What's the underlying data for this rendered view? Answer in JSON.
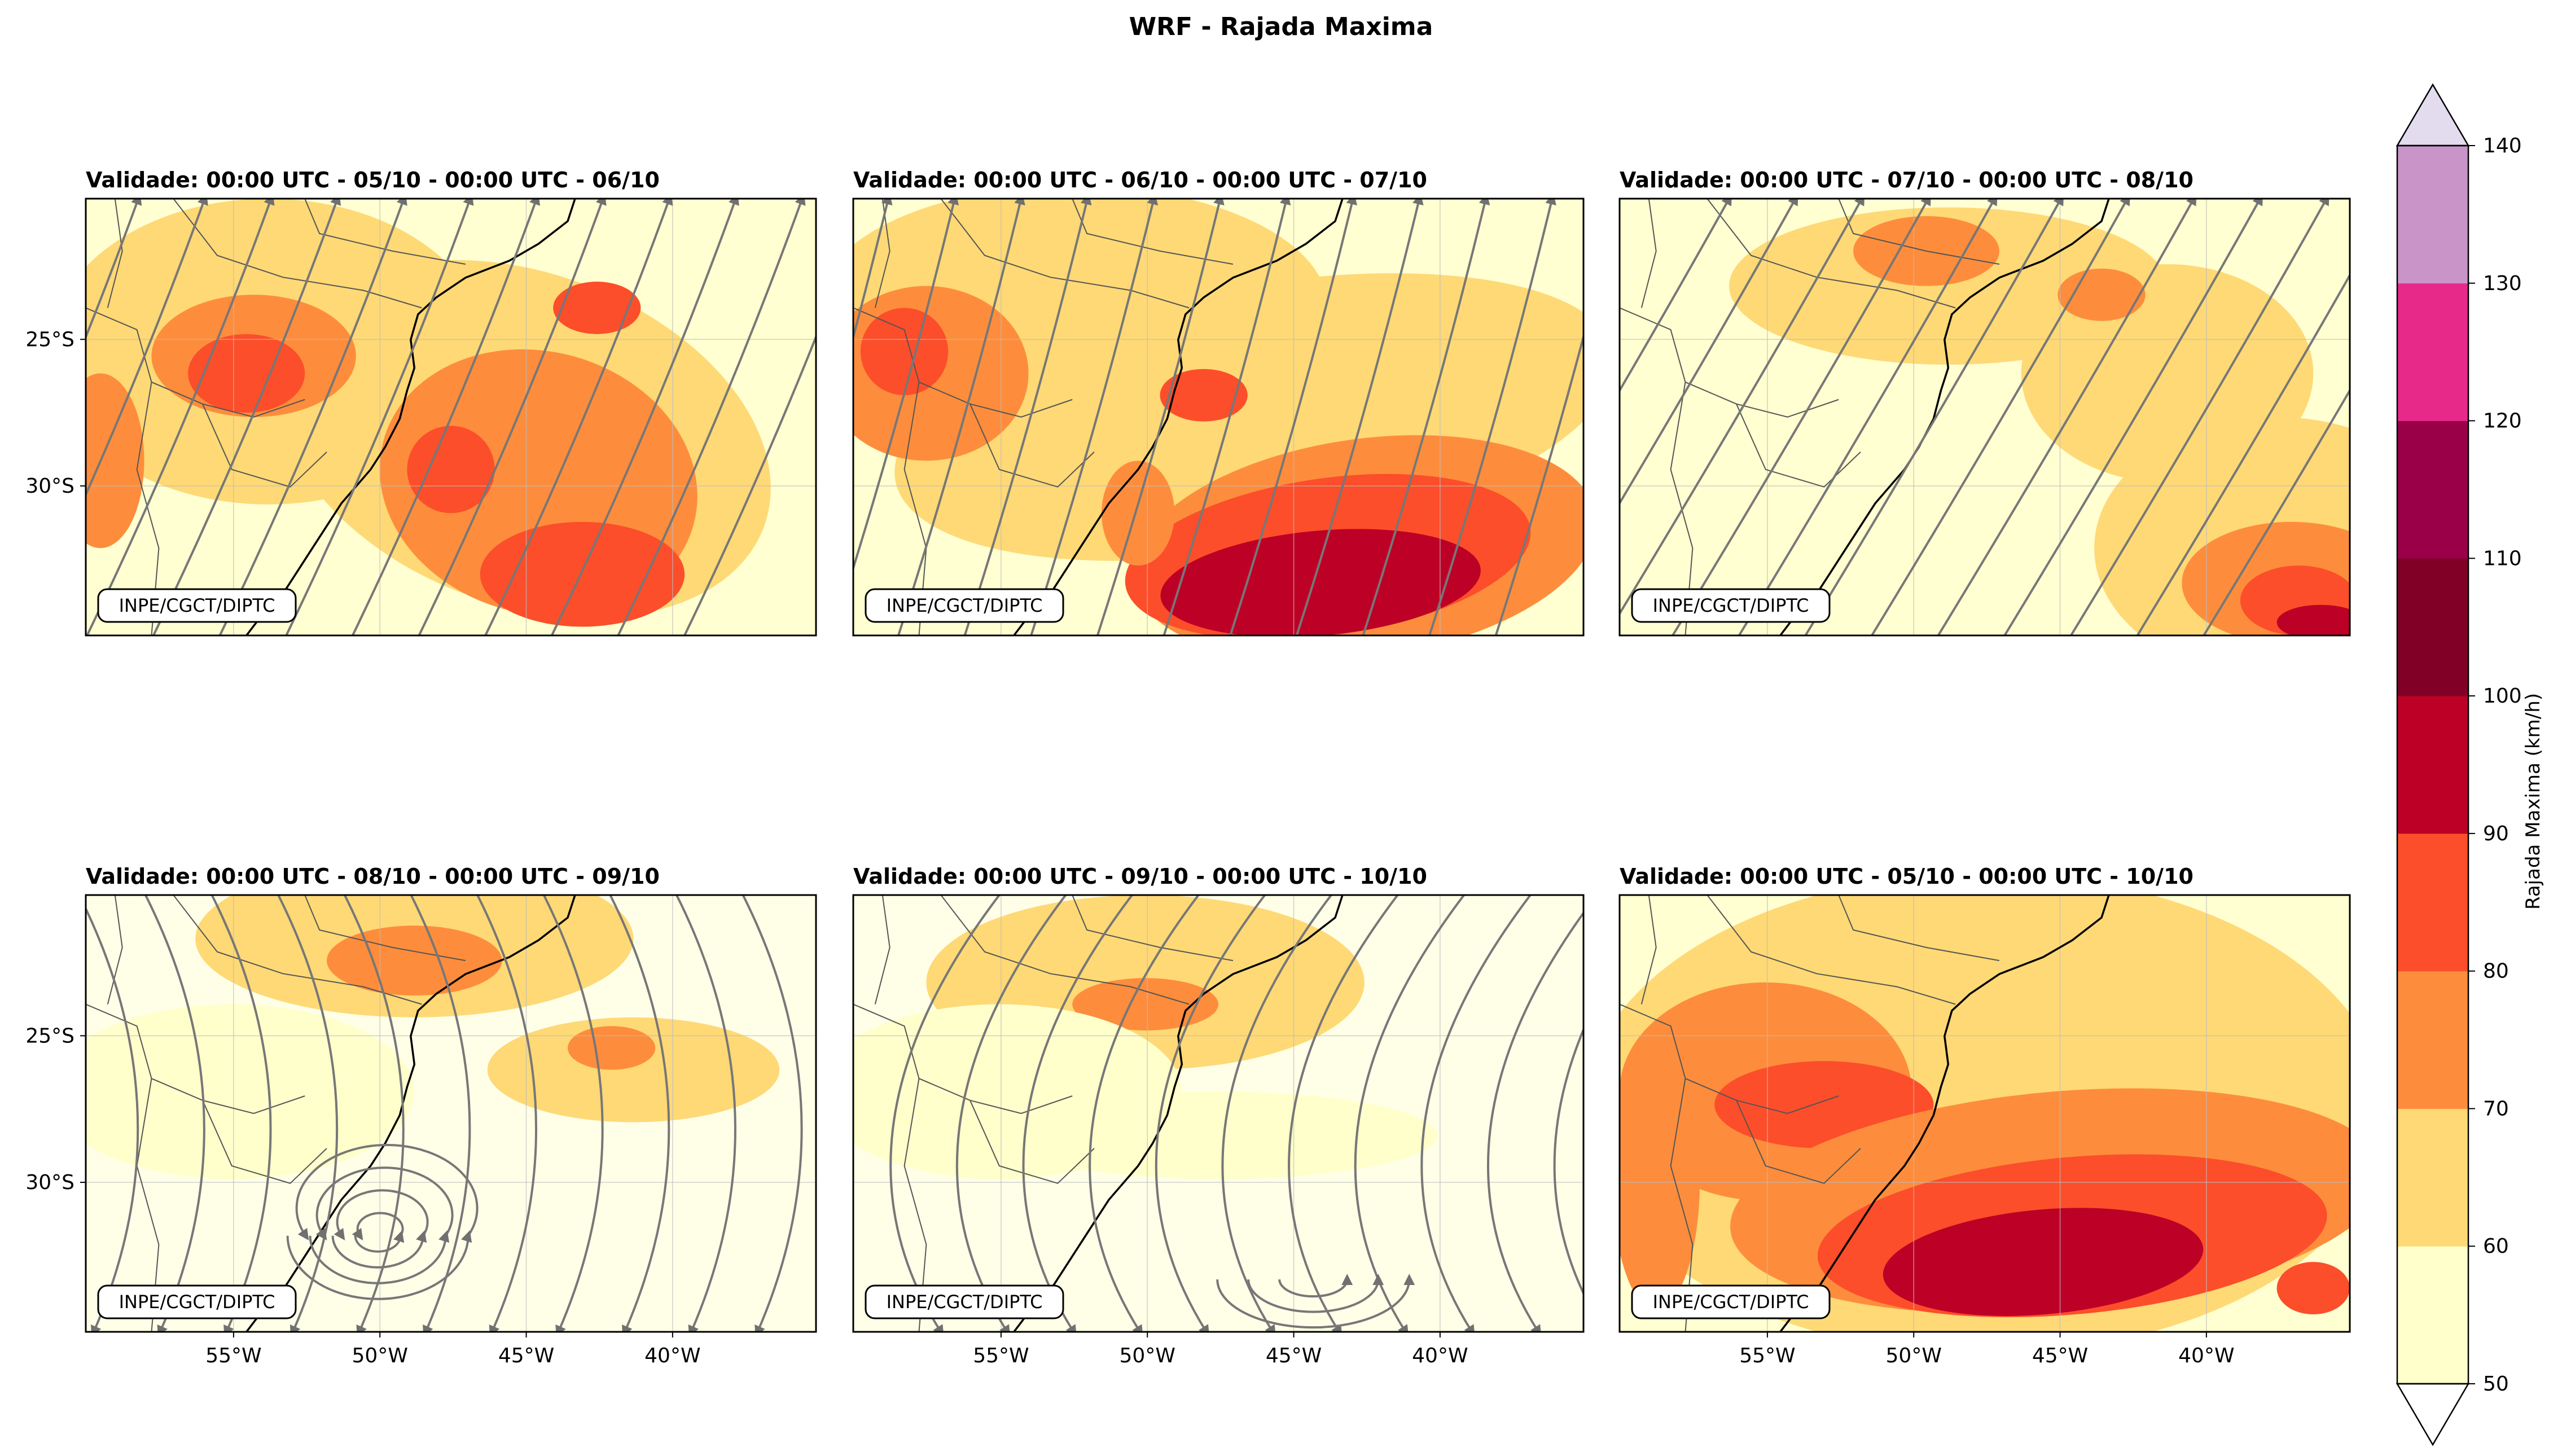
{
  "figure": {
    "title": "WRF - Rajada Maxima",
    "watermark": "INPE/CGCT/DIPTC",
    "lat_ticks": [
      "25°S",
      "30°S"
    ],
    "lon_ticks": [
      "55°W",
      "50°W",
      "45°W",
      "40°W"
    ]
  },
  "panels": [
    {
      "title": "Validade: 00:00 UTC - 05/10 - 00:00 UTC - 06/10"
    },
    {
      "title": "Validade: 00:00 UTC - 06/10 - 00:00 UTC - 07/10"
    },
    {
      "title": "Validade: 00:00 UTC - 07/10 - 00:00 UTC - 08/10"
    },
    {
      "title": "Validade: 00:00 UTC - 08/10 - 00:00 UTC - 09/10"
    },
    {
      "title": "Validade: 00:00 UTC - 09/10 - 00:00 UTC - 10/10"
    },
    {
      "title": "Validade: 00:00 UTC - 05/10 - 00:00 UTC - 10/10"
    }
  ],
  "colorbar": {
    "label": "Rajada Maxima (km/h)",
    "ticks": [
      "50",
      "60",
      "70",
      "80",
      "90",
      "100",
      "110",
      "120",
      "130",
      "140"
    ],
    "colors": [
      "#ffffcc",
      "#fed976",
      "#fd8d3c",
      "#fc4e2a",
      "#bd0026",
      "#800026",
      "#990048",
      "#e7298a",
      "#c994c7"
    ],
    "over_color": "#e2dcee",
    "under_color": "#ffffff"
  }
}
